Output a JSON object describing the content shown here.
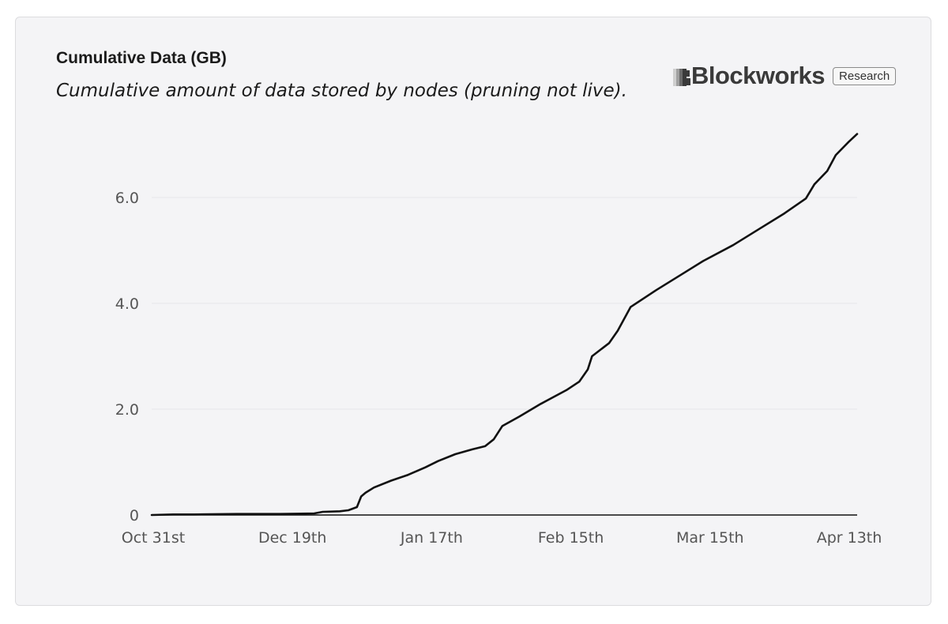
{
  "chart_data": {
    "type": "line",
    "title": "Cumulative Data (GB)",
    "subtitle": "Cumulative amount of data stored by nodes (pruning not live).",
    "xlabel": "",
    "ylabel": "",
    "x_ticks": [
      "Oct 31st",
      "Dec 19th",
      "Jan 17th",
      "Feb 15th",
      "Mar 15th",
      "Apr 13th"
    ],
    "y_ticks": [
      "0",
      "2.0",
      "4.0",
      "6.0"
    ],
    "ylim": [
      0,
      7.5
    ],
    "xlim": [
      "2023-10-31",
      "2024-04-13"
    ],
    "grid": true,
    "series": [
      {
        "color": "#111111",
        "points": [
          [
            "2023-10-31",
            0.0
          ],
          [
            "2023-11-05",
            0.01
          ],
          [
            "2023-11-10",
            0.01
          ],
          [
            "2023-11-20",
            0.02
          ],
          [
            "2023-11-30",
            0.02
          ],
          [
            "2023-12-08",
            0.03
          ],
          [
            "2023-12-10",
            0.06
          ],
          [
            "2023-12-14",
            0.07
          ],
          [
            "2023-12-16",
            0.09
          ],
          [
            "2023-12-18",
            0.15
          ],
          [
            "2023-12-19",
            0.35
          ],
          [
            "2023-12-20",
            0.42
          ],
          [
            "2023-12-22",
            0.52
          ],
          [
            "2023-12-26",
            0.65
          ],
          [
            "2023-12-30",
            0.76
          ],
          [
            "2024-01-03",
            0.9
          ],
          [
            "2024-01-06",
            1.02
          ],
          [
            "2024-01-10",
            1.15
          ],
          [
            "2024-01-14",
            1.24
          ],
          [
            "2024-01-17",
            1.3
          ],
          [
            "2024-01-19",
            1.43
          ],
          [
            "2024-01-21",
            1.68
          ],
          [
            "2024-01-25",
            1.86
          ],
          [
            "2024-01-30",
            2.1
          ],
          [
            "2024-02-05",
            2.36
          ],
          [
            "2024-02-08",
            2.52
          ],
          [
            "2024-02-10",
            2.75
          ],
          [
            "2024-02-11",
            3.0
          ],
          [
            "2024-02-15",
            3.25
          ],
          [
            "2024-02-17",
            3.48
          ],
          [
            "2024-02-20",
            3.93
          ],
          [
            "2024-02-26",
            4.25
          ],
          [
            "2024-03-03",
            4.55
          ],
          [
            "2024-03-08",
            4.8
          ],
          [
            "2024-03-15",
            5.1
          ],
          [
            "2024-03-21",
            5.4
          ],
          [
            "2024-03-27",
            5.7
          ],
          [
            "2024-04-01",
            5.98
          ],
          [
            "2024-04-03",
            6.25
          ],
          [
            "2024-04-06",
            6.5
          ],
          [
            "2024-04-08",
            6.8
          ],
          [
            "2024-04-11",
            7.05
          ],
          [
            "2024-04-13",
            7.2
          ]
        ]
      }
    ]
  },
  "brand": {
    "logo_text": "Blockworks",
    "badge": "Research"
  },
  "colors": {
    "background": "#f4f4f6",
    "line": "#111111",
    "gridline": "#e6e6ea"
  }
}
